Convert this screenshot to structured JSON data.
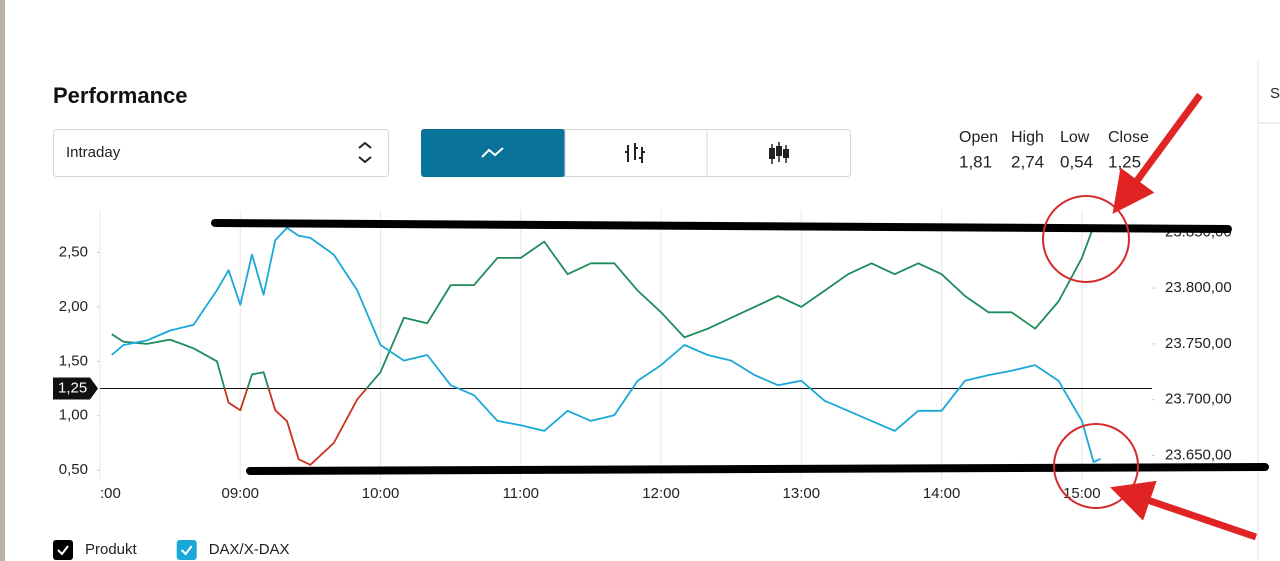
{
  "header": {
    "title": "Performance",
    "side_text": "Se"
  },
  "controls": {
    "range": "Intraday"
  },
  "stats": [
    {
      "label": "Open",
      "value": "1,81"
    },
    {
      "label": "High",
      "value": "2,74"
    },
    {
      "label": "Low",
      "value": "0,54"
    },
    {
      "label": "Close",
      "value": "1,25"
    }
  ],
  "chart_data": {
    "type": "line",
    "x": [
      "08:05",
      "08:10",
      "08:20",
      "08:30",
      "08:40",
      "08:50",
      "08:55",
      "09:00",
      "09:05",
      "09:10",
      "09:15",
      "09:20",
      "09:25",
      "09:30",
      "09:40",
      "09:50",
      "10:00",
      "10:10",
      "10:20",
      "10:30",
      "10:40",
      "10:50",
      "11:00",
      "11:10",
      "11:20",
      "11:30",
      "11:40",
      "11:50",
      "12:00",
      "12:10",
      "12:20",
      "12:30",
      "12:40",
      "12:50",
      "13:00",
      "13:10",
      "13:20",
      "13:30",
      "13:40",
      "13:50",
      "14:00",
      "14:10",
      "14:20",
      "14:30",
      "14:40",
      "14:50",
      "15:00",
      "15:05",
      "15:08"
    ],
    "xlim": [
      "08:00",
      "15:30"
    ],
    "xticks": [
      {
        "value": "08:00",
        "label": ":00"
      },
      "09:00",
      "10:00",
      "11:00",
      "12:00",
      "13:00",
      "14:00",
      "15:00"
    ],
    "ylim": [
      0.41,
      2.89
    ],
    "yticks": [
      {
        "value": 0.5,
        "label": "0,50"
      },
      {
        "value": 1,
        "label": "1,00"
      },
      {
        "value": 1.5,
        "label": "1,50"
      },
      {
        "value": 2,
        "label": "2,00"
      },
      {
        "value": 2.5,
        "label": "2,50"
      }
    ],
    "y2lim": [
      23628,
      23870
    ],
    "y2ticks": [
      {
        "value": 23650,
        "label": "23.650,00"
      },
      {
        "value": 23700,
        "label": "23.700,00"
      },
      {
        "value": 23750,
        "label": "23.750,00"
      },
      {
        "value": 23800,
        "label": "23.800,00"
      },
      {
        "value": 23850,
        "label": "23.850,00"
      }
    ],
    "reference": {
      "value": 1.25,
      "label": "1,25"
    },
    "grid": true,
    "series": [
      {
        "name": "Produkt",
        "color": "#1e8c5a",
        "below_color": "#c8321e",
        "legend_color": "#000000",
        "values": [
          1.75,
          1.68,
          1.66,
          1.7,
          1.62,
          1.5,
          1.12,
          1.05,
          1.38,
          1.4,
          1.05,
          0.95,
          0.6,
          0.55,
          0.75,
          1.15,
          1.4,
          1.9,
          1.85,
          2.2,
          2.2,
          2.45,
          2.45,
          2.6,
          2.3,
          2.4,
          2.4,
          2.15,
          1.95,
          1.72,
          1.8,
          1.9,
          2.0,
          2.1,
          2.0,
          2.15,
          2.3,
          2.4,
          2.3,
          2.4,
          2.3,
          2.1,
          1.95,
          1.95,
          1.8,
          2.05,
          2.45,
          2.74,
          null
        ]
      },
      {
        "name": "DAX/X-DAX",
        "color": "#1aa8d8",
        "legend_color": "#1aa8d8",
        "axis": "y2",
        "values": [
          23740,
          23749,
          23753,
          23762,
          23767,
          23798,
          23816,
          23785,
          23830,
          23794,
          23843,
          23854,
          23847,
          23845,
          23830,
          23798,
          23749,
          23735,
          23740,
          23713,
          23704,
          23681,
          23677,
          23672,
          23690,
          23681,
          23686,
          23717,
          23731,
          23749,
          23740,
          23735,
          23722,
          23713,
          23717,
          23699,
          23690,
          23681,
          23672,
          23690,
          23690,
          23717,
          23722,
          23726,
          23731,
          23717,
          23681,
          23644,
          23647
        ]
      }
    ]
  }
}
